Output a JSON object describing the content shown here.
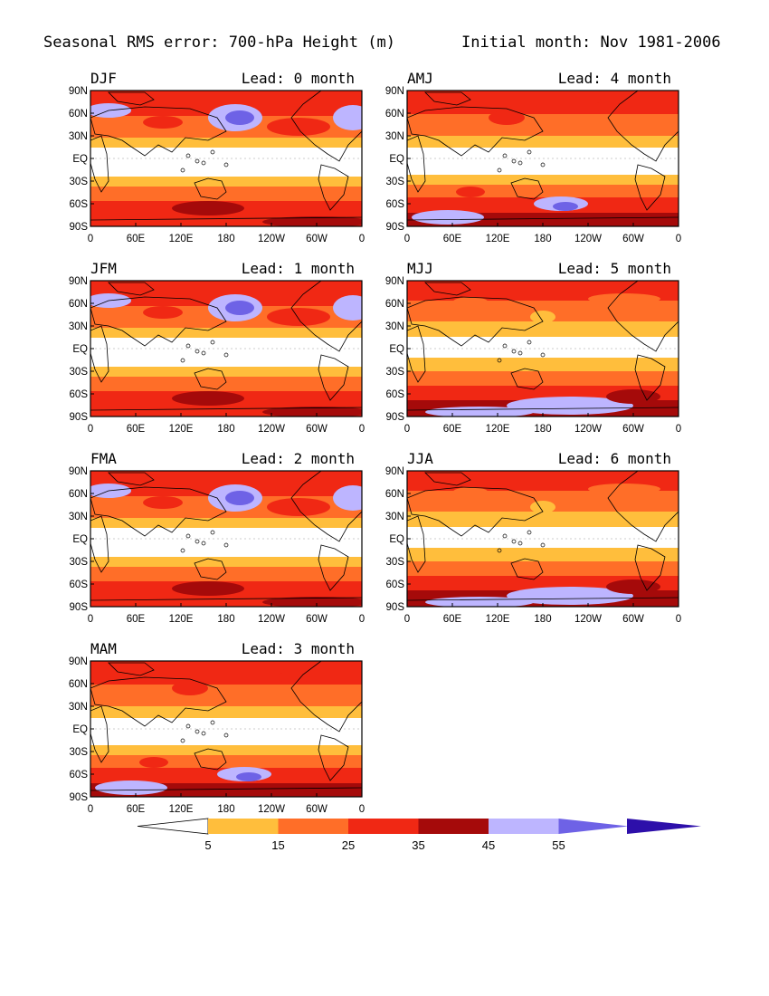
{
  "figure": {
    "title_left": "Seasonal RMS error: 700-hPa Height (m)",
    "title_right": "Initial month: Nov 1981-2006"
  },
  "panels": [
    {
      "season": "DJF",
      "lead": "Lead: 0 month",
      "lead_months": 0,
      "kind": "winter"
    },
    {
      "season": "AMJ",
      "lead": "Lead: 4 month",
      "lead_months": 4,
      "kind": "spring"
    },
    {
      "season": "JFM",
      "lead": "Lead: 1 month",
      "lead_months": 1,
      "kind": "winter"
    },
    {
      "season": "MJJ",
      "lead": "Lead: 5 month",
      "lead_months": 5,
      "kind": "summer"
    },
    {
      "season": "FMA",
      "lead": "Lead: 2 month",
      "lead_months": 2,
      "kind": "winter"
    },
    {
      "season": "JJA",
      "lead": "Lead: 6 month",
      "lead_months": 6,
      "kind": "summer"
    },
    {
      "season": "MAM",
      "lead": "Lead: 3 month",
      "lead_months": 3,
      "kind": "spring"
    }
  ],
  "axes": {
    "lat_labels": [
      "90N",
      "60N",
      "30N",
      "EQ",
      "30S",
      "60S",
      "90S"
    ],
    "lon_labels": [
      "0",
      "60E",
      "120E",
      "180",
      "120W",
      "60W",
      "0"
    ]
  },
  "colorbar": {
    "levels": [
      "5",
      "15",
      "25",
      "35",
      "45",
      "55"
    ],
    "colors": [
      "#ffffff",
      "#ffbe3c",
      "#ff6e28",
      "#f02814",
      "#a50a0a",
      "#bdb5ff",
      "#6e62e6",
      "#2d0faa"
    ],
    "units": "m"
  },
  "chart_data": {
    "type": "heatmap",
    "variable": "RMS error of 700-hPa geopotential height",
    "units": "m",
    "contour_levels": [
      5,
      15,
      25,
      35,
      45,
      55
    ],
    "x_axis": "longitude (0 to 360)",
    "y_axis": "latitude (90S to 90N)",
    "panels": [
      "DJF lead 0",
      "JFM lead 1",
      "FMA lead 2",
      "MAM lead 3",
      "AMJ lead 4",
      "MJJ lead 5",
      "JJA lead 6"
    ]
  }
}
